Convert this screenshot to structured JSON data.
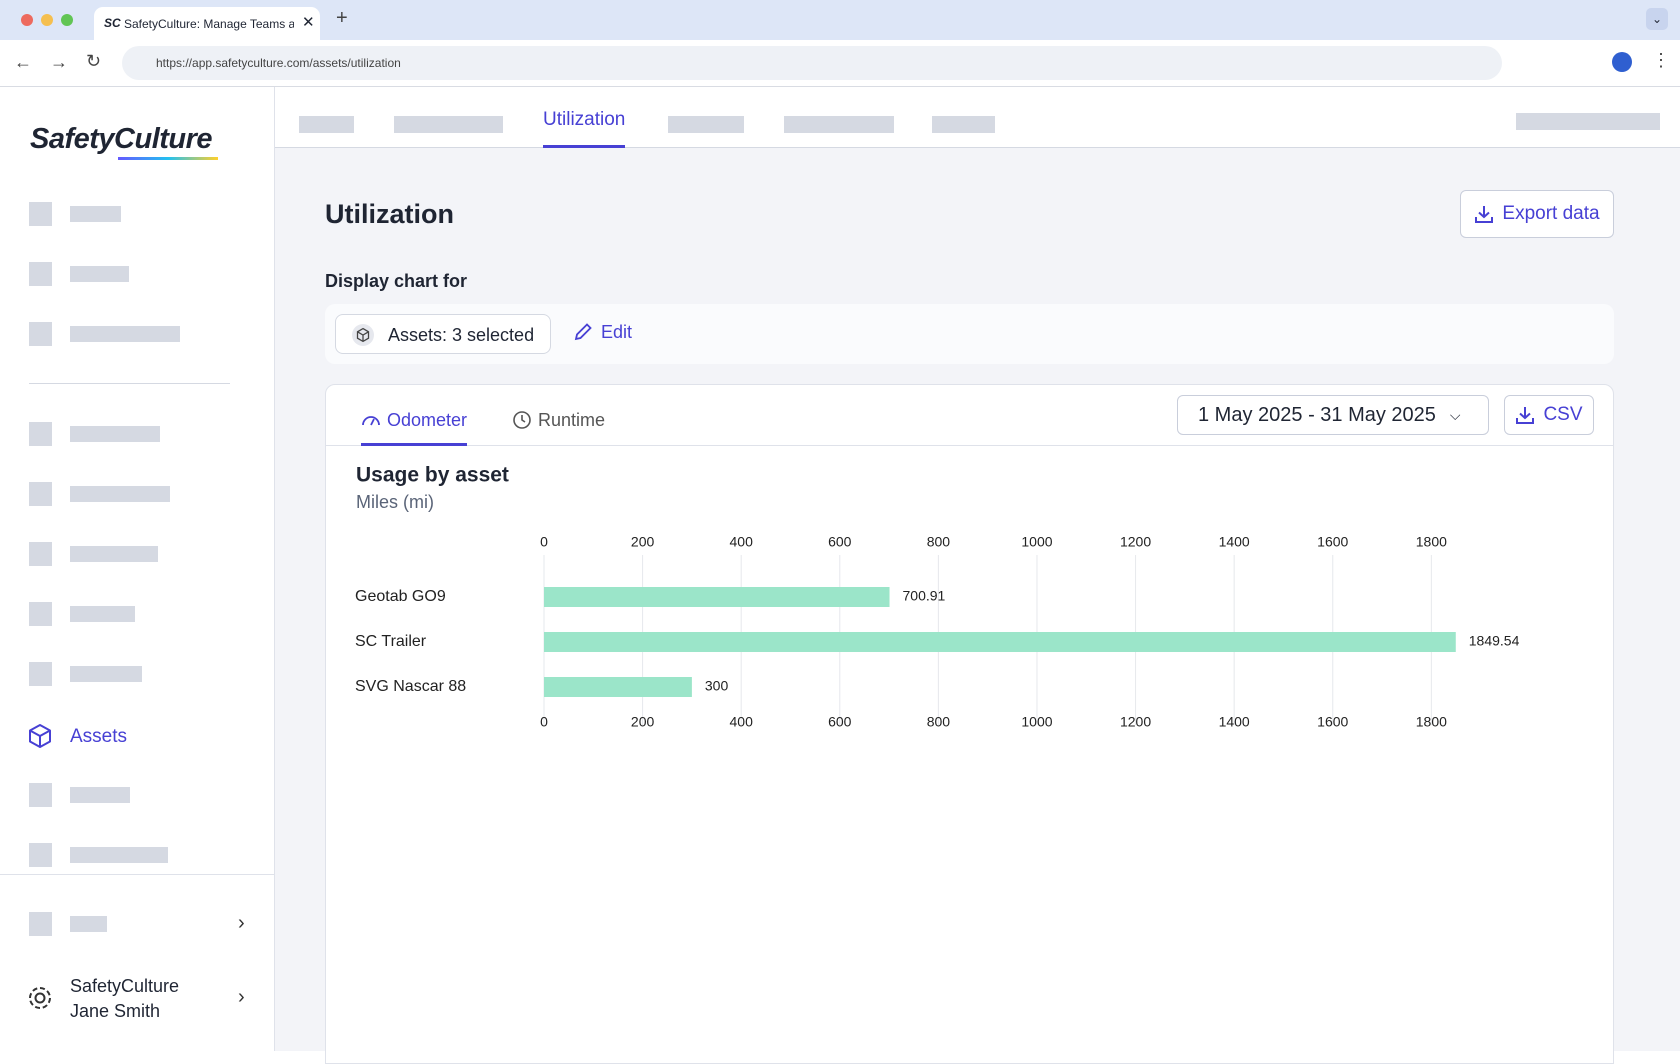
{
  "browser": {
    "tab_title": "SafetyCulture: Manage Teams and...",
    "url": "https://app.safetyculture.com/assets/utilization"
  },
  "sidebar": {
    "logo": "SafetyCulture",
    "active_item": "Assets",
    "org": "SafetyCulture",
    "user": "Jane Smith"
  },
  "top_tabs": {
    "active": "Utilization"
  },
  "header": {
    "title": "Utilization",
    "export_button": "Export data",
    "display_label": "Display chart for",
    "assets_filter": "Assets: 3 selected",
    "edit_button": "Edit"
  },
  "card": {
    "tabs": [
      "Odometer",
      "Runtime"
    ],
    "date_range": "1 May 2025 - 31 May 2025",
    "csv_button": "CSV"
  },
  "chart_data": {
    "type": "bar",
    "orientation": "horizontal",
    "title": "Usage by asset",
    "subtitle": "Miles (mi)",
    "categories": [
      "Geotab GO9",
      "SC Trailer",
      "SVG Nascar 88"
    ],
    "values": [
      700.91,
      1849.54,
      300
    ],
    "color": "#9be5c9",
    "xlim": [
      0,
      1850
    ],
    "xticks": [
      0,
      200,
      400,
      600,
      800,
      1000,
      1200,
      1400,
      1600,
      1800
    ],
    "grid": true
  }
}
